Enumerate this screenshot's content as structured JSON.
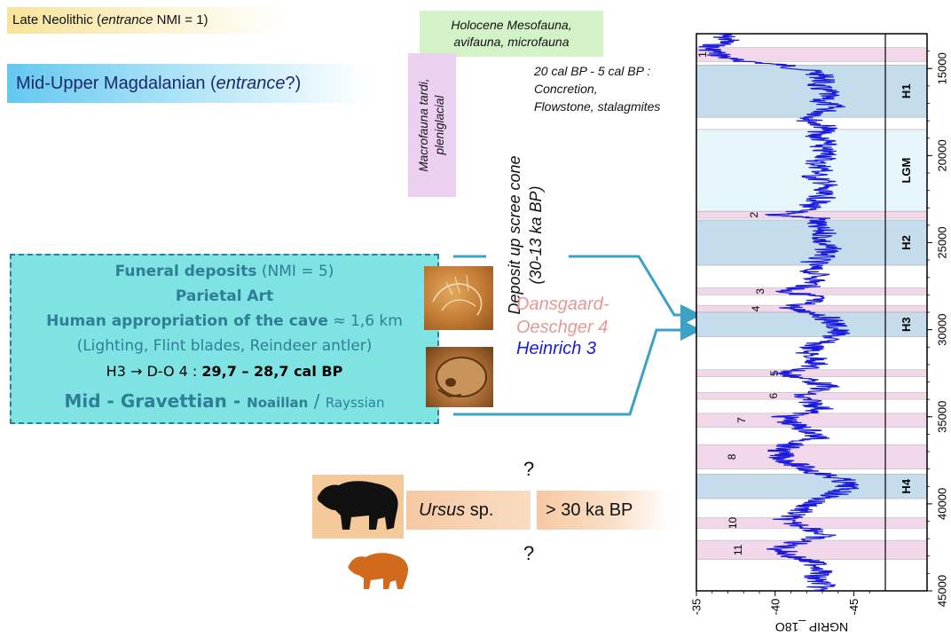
{
  "labels": {
    "late_neolithic": {
      "pre": "Late Neolithic (",
      "em": "entrance",
      "post": " NMI = 1)"
    },
    "magdalenian": {
      "pre": "Mid-Upper Magdalanian (",
      "em": "entrance",
      "post": "?)"
    },
    "holocene_fauna": [
      "Holocene Mesofauna,",
      "avifauna, microfauna"
    ],
    "macrofauna": [
      "Macrofauna tardi,",
      "pleniglacial"
    ],
    "speleothems": [
      "20 cal BP - 5 cal BP :",
      "Concretion,",
      "Flowstone, stalagmites"
    ],
    "deposit": [
      "Deposit up scree cone",
      "(30-13 ka BP)"
    ],
    "funeral": {
      "line1_bold": "Funeral deposits",
      "line1_rest": " (NMI = 5)",
      "line2": "Parietal Art",
      "line3_bold": "Human appropriation of the cave",
      "line3_rest": " ≈ 1,6 km",
      "line4": "(Lighting, Flint blades, Reindeer antler)",
      "line5_pre": "H3 ",
      "line5_arrow": "→",
      "line5_mid": " D-O 4 : ",
      "line5_bold": "29,7  –  28,7 cal BP",
      "line6_a": "Mid - Gravettian - ",
      "line6_b": "Noaillan",
      "line6_c": " / ",
      "line6_d": "Rayssian"
    },
    "dansgaard": [
      "Dansgaard-",
      "Oeschger 4"
    ],
    "heinrich": "Heinrich 3",
    "ursus_em": "Ursus",
    "ursus_rest": " sp.",
    "age": "> 30 ka BP",
    "question": "?"
  },
  "colors": {
    "cyan_box": "#7fe3e3",
    "teal_text": "#2e7e95",
    "arrow": "#3ba1c7",
    "curve": "#1a1adb",
    "heinrich_band": "#c5dcec",
    "lgm_band": "#e6f6fb",
    "do_band": "#f2d7ea",
    "bear_black": "#111111",
    "bear_orange": "#d16a1c"
  },
  "chart_data": {
    "type": "line",
    "series_name": "NGRIP δ18O",
    "xlabel": "NGRIP _18O",
    "x_ticks": [
      "-35",
      "-40",
      "-45"
    ],
    "xlim": [
      -35,
      -47
    ],
    "ylim": [
      13000,
      45000
    ],
    "y_ticks": [
      "15000",
      "20000",
      "25000",
      "30000",
      "35000",
      "40000",
      "45000"
    ],
    "stadials": [
      {
        "label": "H1",
        "start": 14800,
        "end": 17800
      },
      {
        "label": "LGM",
        "start": 18500,
        "end": 23200
      },
      {
        "label": "H2",
        "start": 23700,
        "end": 26300
      },
      {
        "label": "H3",
        "start": 29000,
        "end": 30400
      },
      {
        "label": "H4",
        "start": 38300,
        "end": 39700
      }
    ],
    "interstadials": [
      {
        "label": "1",
        "start": 13800,
        "end": 14600
      },
      {
        "label": "2",
        "start": 23200,
        "end": 23600
      },
      {
        "label": "3",
        "start": 27600,
        "end": 28000
      },
      {
        "label": "4",
        "start": 28600,
        "end": 29000
      },
      {
        "label": "5",
        "start": 32300,
        "end": 32700
      },
      {
        "label": "6",
        "start": 33600,
        "end": 34000
      },
      {
        "label": "7",
        "start": 34800,
        "end": 35600
      },
      {
        "label": "8",
        "start": 36600,
        "end": 38000
      },
      {
        "label": "10",
        "start": 40800,
        "end": 41400
      },
      {
        "label": "11",
        "start": 42100,
        "end": 43200
      }
    ],
    "curve": [
      [
        13000,
        -36.5
      ],
      [
        13400,
        -37
      ],
      [
        13800,
        -35.8
      ],
      [
        14200,
        -36.4
      ],
      [
        14500,
        -37.2
      ],
      [
        14800,
        -40.5
      ],
      [
        15200,
        -42.5
      ],
      [
        15600,
        -43.2
      ],
      [
        16000,
        -42.6
      ],
      [
        16400,
        -43.4
      ],
      [
        16800,
        -42.8
      ],
      [
        17200,
        -43.6
      ],
      [
        17600,
        -42.9
      ],
      [
        18000,
        -42.2
      ],
      [
        18400,
        -43.4
      ],
      [
        18800,
        -42.5
      ],
      [
        19200,
        -43.2
      ],
      [
        19600,
        -42.8
      ],
      [
        20000,
        -43.5
      ],
      [
        20400,
        -42.6
      ],
      [
        20800,
        -43.1
      ],
      [
        21200,
        -42.4
      ],
      [
        21600,
        -43.3
      ],
      [
        22000,
        -42.7
      ],
      [
        22400,
        -43.0
      ],
      [
        22800,
        -42.4
      ],
      [
        23200,
        -41.6
      ],
      [
        23400,
        -39.8
      ],
      [
        23600,
        -42.8
      ],
      [
        24000,
        -42.4
      ],
      [
        24500,
        -43.2
      ],
      [
        25000,
        -42.9
      ],
      [
        25500,
        -43.5
      ],
      [
        26000,
        -42.6
      ],
      [
        26500,
        -42.2
      ],
      [
        27000,
        -42.8
      ],
      [
        27500,
        -42.1
      ],
      [
        27800,
        -40.6
      ],
      [
        28100,
        -42.6
      ],
      [
        28400,
        -42.2
      ],
      [
        28800,
        -40.8
      ],
      [
        29100,
        -42.9
      ],
      [
        29500,
        -43.6
      ],
      [
        30000,
        -44.0
      ],
      [
        30400,
        -43.7
      ],
      [
        30800,
        -42.7
      ],
      [
        31300,
        -42.0
      ],
      [
        31800,
        -42.8
      ],
      [
        32200,
        -42.1
      ],
      [
        32500,
        -40.4
      ],
      [
        32900,
        -42.3
      ],
      [
        33300,
        -43.3
      ],
      [
        33800,
        -41.4
      ],
      [
        34200,
        -42.4
      ],
      [
        34600,
        -43.0
      ],
      [
        35000,
        -40.6
      ],
      [
        35400,
        -41.0
      ],
      [
        35800,
        -42.2
      ],
      [
        36200,
        -42.7
      ],
      [
        36600,
        -41.0
      ],
      [
        37000,
        -40.2
      ],
      [
        37400,
        -40.5
      ],
      [
        37800,
        -41.4
      ],
      [
        38200,
        -42.6
      ],
      [
        38600,
        -44.2
      ],
      [
        39000,
        -44.6
      ],
      [
        39400,
        -44.0
      ],
      [
        39800,
        -42.6
      ],
      [
        40200,
        -42.0
      ],
      [
        40600,
        -41.2
      ],
      [
        41000,
        -40.5
      ],
      [
        41400,
        -42.4
      ],
      [
        41800,
        -43.1
      ],
      [
        42200,
        -41.4
      ],
      [
        42600,
        -40.3
      ],
      [
        43000,
        -41.0
      ],
      [
        43400,
        -42.5
      ],
      [
        43800,
        -43.2
      ],
      [
        44200,
        -42.4
      ],
      [
        44600,
        -43.0
      ],
      [
        45000,
        -42.7
      ]
    ]
  }
}
